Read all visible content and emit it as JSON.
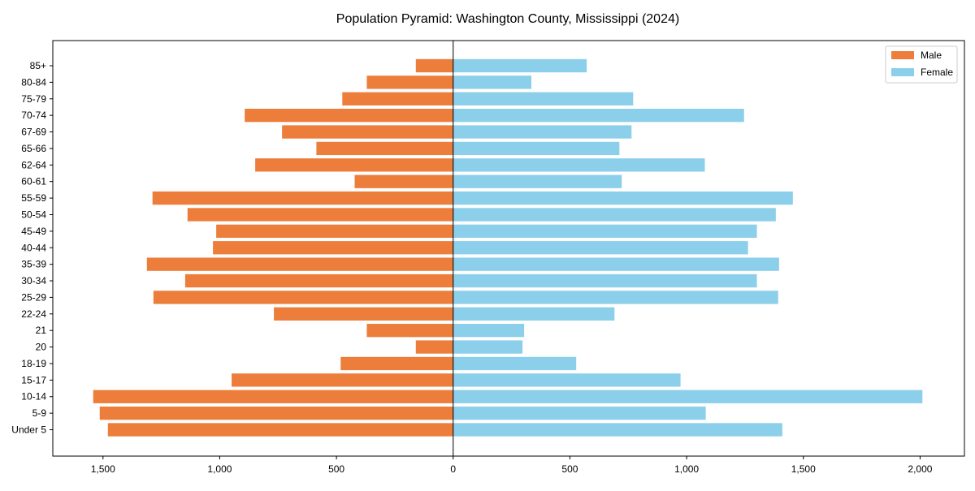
{
  "chart_data": {
    "type": "bar",
    "orientation": "horizontal",
    "title": "Population Pyramid: Washington County, Mississippi (2024)",
    "xlabel": "",
    "ylabel": "",
    "xlim": [
      -1715,
      2190
    ],
    "xticks": [
      -1500,
      -1000,
      -500,
      0,
      500,
      1000,
      1500,
      2000
    ],
    "xtick_labels": [
      "1,500",
      "1,000",
      "500",
      "0",
      "500",
      "1,000",
      "1,500",
      "2,000"
    ],
    "legend_position": "top-right",
    "categories": [
      "Under 5",
      "5-9",
      "10-14",
      "15-17",
      "18-19",
      "20",
      "21",
      "22-24",
      "25-29",
      "30-34",
      "35-39",
      "40-44",
      "45-49",
      "50-54",
      "55-59",
      "60-61",
      "62-64",
      "65-66",
      "67-69",
      "70-74",
      "75-79",
      "80-84",
      "85+"
    ],
    "series": [
      {
        "name": "Male",
        "color": "#ED7D3A",
        "values": [
          1479,
          1514,
          1542,
          949,
          482,
          160,
          370,
          768,
          1284,
          1148,
          1312,
          1029,
          1015,
          1138,
          1288,
          422,
          848,
          586,
          733,
          893,
          475,
          370,
          160
        ]
      },
      {
        "name": "Female",
        "color": "#8BCFEA",
        "values": [
          1410,
          1082,
          2010,
          974,
          527,
          297,
          304,
          691,
          1392,
          1301,
          1396,
          1263,
          1301,
          1382,
          1455,
          722,
          1078,
          712,
          764,
          1246,
          771,
          335,
          572
        ]
      }
    ]
  }
}
